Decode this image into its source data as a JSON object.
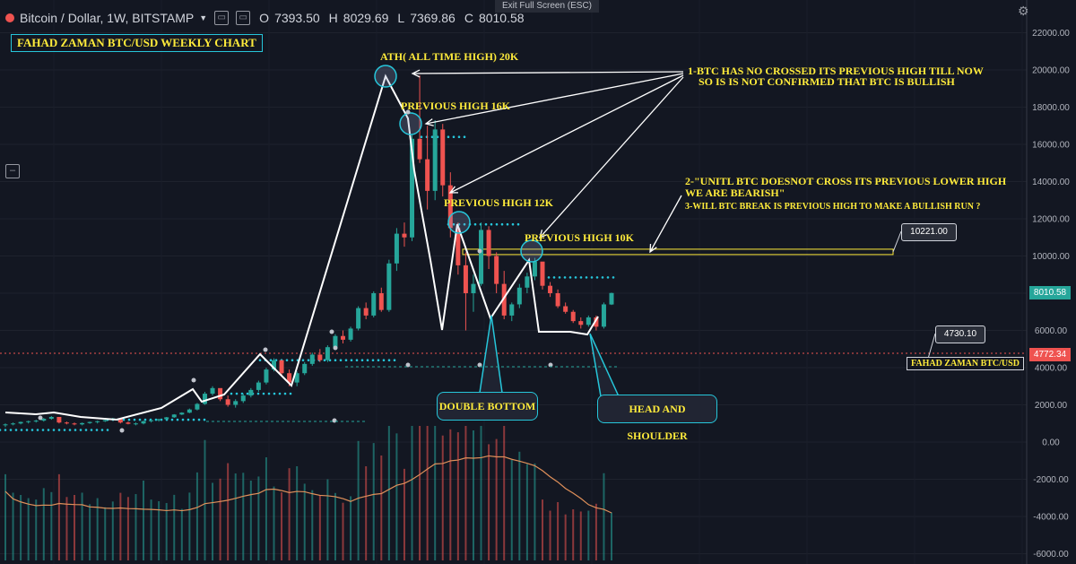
{
  "header": {
    "symbol": "Bitcoin / Dollar, 1W, BITSTAMP",
    "open_label": "O",
    "open": "7393.50",
    "high_label": "H",
    "high": "8029.69",
    "low_label": "L",
    "low": "7369.86",
    "close_label": "C",
    "close": "8010.58"
  },
  "toolbar": {
    "fullscreen_label": "Exit Full Screen (ESC)"
  },
  "chart_data": {
    "type": "candlestick",
    "title": "FAHAD ZAMAN BTC/USD WEEKLY CHART",
    "y_axis": {
      "ticks": [
        "22000.00",
        "20000.00",
        "18000.00",
        "16000.00",
        "14000.00",
        "12000.00",
        "10000.00",
        "8000.00",
        "6000.00",
        "4000.00",
        "2000.00",
        "0.00",
        "-2000.00",
        "-4000.00",
        "-6000.00"
      ],
      "ylim": [
        -6000,
        22000
      ]
    },
    "price_tags": {
      "last": "8010.58",
      "ref": "4772.34"
    },
    "candles": [
      [
        900,
        1000,
        800,
        950
      ],
      [
        950,
        1050,
        900,
        1000
      ],
      [
        1000,
        1100,
        950,
        1080
      ],
      [
        1080,
        1150,
        1000,
        1120
      ],
      [
        1120,
        1200,
        1050,
        1150
      ],
      [
        1150,
        1300,
        1100,
        1250
      ],
      [
        1250,
        1400,
        1200,
        1350
      ],
      [
        1350,
        1300,
        1000,
        1050
      ],
      [
        1050,
        1100,
        950,
        1000
      ],
      [
        1000,
        1050,
        900,
        950
      ],
      [
        950,
        1050,
        900,
        1020
      ],
      [
        1020,
        1100,
        980,
        1080
      ],
      [
        1080,
        1150,
        1000,
        1120
      ],
      [
        1120,
        1200,
        1080,
        1180
      ],
      [
        1180,
        1300,
        1150,
        1270
      ],
      [
        1270,
        1200,
        1000,
        1050
      ],
      [
        1050,
        1100,
        950,
        980
      ],
      [
        980,
        1050,
        900,
        1000
      ],
      [
        1000,
        1150,
        950,
        1120
      ],
      [
        1120,
        1200,
        1050,
        1170
      ],
      [
        1170,
        1250,
        1100,
        1230
      ],
      [
        1230,
        1350,
        1200,
        1330
      ],
      [
        1330,
        1500,
        1300,
        1480
      ],
      [
        1480,
        1600,
        1450,
        1580
      ],
      [
        1580,
        1800,
        1550,
        1750
      ],
      [
        1750,
        2100,
        1700,
        2050
      ],
      [
        2050,
        2700,
        2000,
        2600
      ],
      [
        2600,
        3000,
        2500,
        2900
      ],
      [
        2900,
        2800,
        2200,
        2300
      ],
      [
        2300,
        2500,
        1900,
        2000
      ],
      [
        2000,
        2300,
        1850,
        2200
      ],
      [
        2200,
        2600,
        2100,
        2500
      ],
      [
        2500,
        2900,
        2400,
        2800
      ],
      [
        2800,
        3300,
        2700,
        3200
      ],
      [
        3200,
        4000,
        3100,
        3900
      ],
      [
        3900,
        4500,
        3800,
        4400
      ],
      [
        4400,
        4300,
        3600,
        3700
      ],
      [
        3700,
        3900,
        3000,
        3200
      ],
      [
        3200,
        3800,
        3000,
        3700
      ],
      [
        3700,
        4300,
        3600,
        4200
      ],
      [
        4200,
        4800,
        4100,
        4700
      ],
      [
        4700,
        5000,
        4300,
        4400
      ],
      [
        4400,
        5200,
        4300,
        5100
      ],
      [
        5100,
        5800,
        5000,
        5700
      ],
      [
        5700,
        6000,
        5300,
        5500
      ],
      [
        5500,
        6200,
        5400,
        6100
      ],
      [
        6100,
        7300,
        6000,
        7200
      ],
      [
        7200,
        7500,
        6600,
        6800
      ],
      [
        6800,
        8100,
        6700,
        8000
      ],
      [
        8000,
        8300,
        7000,
        7100
      ],
      [
        7100,
        9800,
        7000,
        9600
      ],
      [
        9600,
        11500,
        9200,
        11200
      ],
      [
        11200,
        11800,
        10500,
        11000
      ],
      [
        11000,
        16500,
        10800,
        16300
      ],
      [
        16300,
        19700,
        15000,
        15200
      ],
      [
        15200,
        17000,
        12500,
        13500
      ],
      [
        13500,
        17300,
        13000,
        16800
      ],
      [
        16800,
        17100,
        13200,
        13800
      ],
      [
        13800,
        14500,
        11000,
        11500
      ],
      [
        11500,
        11800,
        9000,
        9500
      ],
      [
        9500,
        10200,
        6000,
        8000
      ],
      [
        8000,
        9000,
        7000,
        8500
      ],
      [
        8500,
        11800,
        8400,
        11400
      ],
      [
        11400,
        11600,
        9300,
        10000
      ],
      [
        10000,
        10200,
        8000,
        8500
      ],
      [
        8500,
        9200,
        6600,
        6800
      ],
      [
        6800,
        7500,
        6500,
        7400
      ],
      [
        7400,
        8500,
        7200,
        8300
      ],
      [
        8300,
        9100,
        8000,
        8900
      ],
      [
        8900,
        9900,
        8700,
        9700
      ],
      [
        9700,
        9500,
        8200,
        8400
      ],
      [
        8400,
        8600,
        7800,
        8000
      ],
      [
        8000,
        8200,
        7200,
        7300
      ],
      [
        7300,
        7500,
        6900,
        7000
      ],
      [
        7000,
        7100,
        6400,
        6500
      ],
      [
        6500,
        6700,
        6100,
        6300
      ],
      [
        6300,
        6800,
        6200,
        6700
      ],
      [
        6700,
        6800,
        6000,
        6200
      ],
      [
        6200,
        7500,
        6100,
        7400
      ],
      [
        7394,
        8030,
        7370,
        8011
      ]
    ],
    "levels": [
      {
        "name": "previous-high-10k-line",
        "value": "10221.00"
      }
    ],
    "callouts": [
      "DOUBLE BOTTOM",
      "HEAD AND SHOULDER"
    ],
    "annotations": {
      "ath": "ATH( ALL TIME HIGH) 20K",
      "prev16": "PREVIOUS HIGH 16K",
      "prev12": "PREVIOUS HIGH 12K",
      "prev10": "PREVIOUS HIGH 10K",
      "note1_line1": "1-BTC HAS NO CROSSED ITS PREVIOUS HIGH TILL NOW",
      "note1_line2": "SO IS IS NOT CONFIRMED THAT  BTC IS BULLISH",
      "note2_line1": "2-\"UNITL BTC DOESNOT CROSS ITS PREVIOUS LOWER HIGH",
      "note2_line2": " WE ARE BEARISH\"",
      "note3": "3-WILL BTC BREAK IS PREVIOUS HIGH TO MAKE A BULLISH RUN ?"
    },
    "tags": {
      "t10221": "10221.00",
      "t4730": "4730.10",
      "brand": "FAHAD ZAMAN BTC/USD"
    },
    "colors": {
      "bg": "#131722",
      "up": "#26a69a",
      "down": "#ef5350",
      "cyan": "#26c6da",
      "yellow": "#ffeb3b",
      "annot": "#ffffff",
      "vol_ma": "#e0905a"
    }
  }
}
